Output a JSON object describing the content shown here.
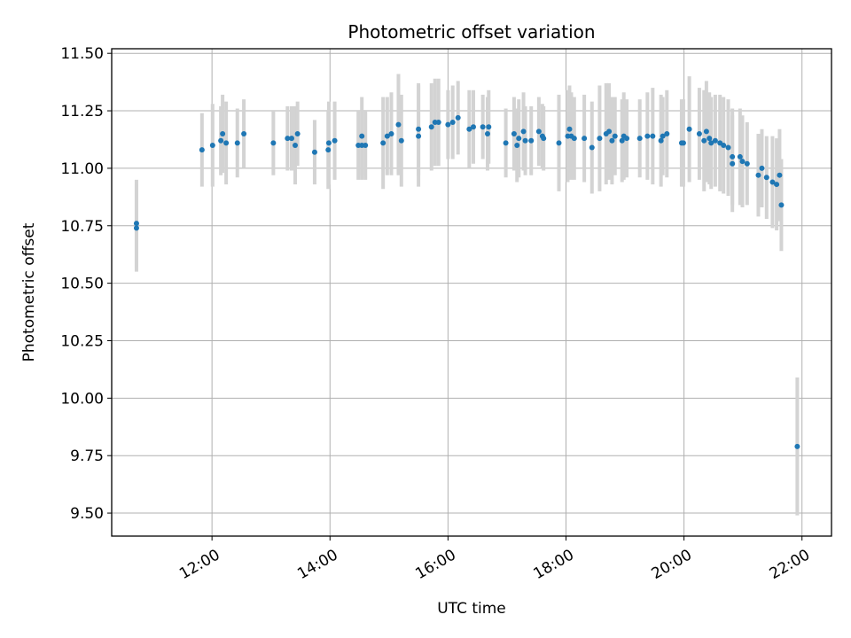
{
  "chart_data": {
    "type": "scatter",
    "title": "Photometric offset variation",
    "xlabel": "UTC time",
    "ylabel": "Photometric offset",
    "x_unit": "hours (UTC)",
    "xlim": [
      10.3,
      22.5
    ],
    "ylim": [
      9.4,
      11.52
    ],
    "x_ticks": [
      12,
      14,
      16,
      18,
      20,
      22
    ],
    "x_tick_labels": [
      "12:00",
      "14:00",
      "16:00",
      "18:00",
      "20:00",
      "22:00"
    ],
    "y_ticks": [
      9.5,
      9.75,
      10.0,
      10.25,
      10.5,
      10.75,
      11.0,
      11.25,
      11.5
    ],
    "y_tick_labels": [
      "9.50",
      "9.75",
      "10.00",
      "10.25",
      "10.50",
      "10.75",
      "11.00",
      "11.25",
      "11.50"
    ],
    "grid": true,
    "colors": {
      "point": "#1f77b4",
      "errorbar": "#d3d3d3",
      "grid": "#b0b0b0"
    },
    "series": [
      {
        "x": [
          10.72,
          10.72,
          11.83,
          12.01,
          12.15,
          12.18,
          12.24,
          12.43,
          12.54,
          13.04,
          13.28,
          13.35,
          13.41,
          13.45,
          13.74,
          13.97,
          13.98,
          14.08,
          14.48,
          14.54,
          14.54,
          14.6,
          14.9,
          14.97,
          15.04,
          15.16,
          15.21,
          15.5,
          15.5,
          15.72,
          15.78,
          15.84,
          16.0,
          16.08,
          16.17,
          16.36,
          16.43,
          16.59,
          16.67,
          16.69,
          16.98,
          17.12,
          17.17,
          17.2,
          17.28,
          17.31,
          17.41,
          17.54,
          17.6,
          17.62,
          17.88,
          18.03,
          18.06,
          18.09,
          18.14,
          18.31,
          18.44,
          18.57,
          18.68,
          18.73,
          18.78,
          18.83,
          18.95,
          18.98,
          19.03,
          19.25,
          19.38,
          19.47,
          19.61,
          19.64,
          19.71,
          19.96,
          19.99,
          20.09,
          20.26,
          20.34,
          20.38,
          20.43,
          20.46,
          20.53,
          20.61,
          20.67,
          20.75,
          20.82,
          20.82,
          20.95,
          20.99,
          21.07,
          21.26,
          21.32,
          21.4,
          21.5,
          21.57,
          21.62,
          21.65,
          21.92
        ],
        "y": [
          10.74,
          10.76,
          11.08,
          11.1,
          11.12,
          11.15,
          11.11,
          11.11,
          11.15,
          11.11,
          11.13,
          11.13,
          11.1,
          11.15,
          11.07,
          11.08,
          11.11,
          11.12,
          11.1,
          11.1,
          11.14,
          11.1,
          11.11,
          11.14,
          11.15,
          11.19,
          11.12,
          11.14,
          11.17,
          11.18,
          11.2,
          11.2,
          11.19,
          11.2,
          11.22,
          11.17,
          11.18,
          11.18,
          11.15,
          11.18,
          11.11,
          11.15,
          11.1,
          11.13,
          11.16,
          11.12,
          11.12,
          11.16,
          11.14,
          11.13,
          11.11,
          11.14,
          11.17,
          11.14,
          11.13,
          11.13,
          11.09,
          11.13,
          11.15,
          11.16,
          11.12,
          11.14,
          11.12,
          11.14,
          11.13,
          11.13,
          11.14,
          11.14,
          11.12,
          11.14,
          11.15,
          11.11,
          11.11,
          11.17,
          11.15,
          11.12,
          11.16,
          11.13,
          11.11,
          11.12,
          11.11,
          11.1,
          11.09,
          11.02,
          11.05,
          11.05,
          11.03,
          11.02,
          10.97,
          11.0,
          10.96,
          10.94,
          10.93,
          10.97,
          10.84,
          9.79
        ],
        "yerr": [
          0.19,
          0.19,
          0.16,
          0.18,
          0.15,
          0.17,
          0.18,
          0.15,
          0.15,
          0.14,
          0.14,
          0.14,
          0.17,
          0.14,
          0.14,
          0.17,
          0.18,
          0.17,
          0.15,
          0.15,
          0.17,
          0.15,
          0.2,
          0.17,
          0.18,
          0.22,
          0.2,
          0.22,
          0.2,
          0.19,
          0.19,
          0.19,
          0.15,
          0.16,
          0.16,
          0.17,
          0.16,
          0.14,
          0.16,
          0.16,
          0.15,
          0.16,
          0.16,
          0.17,
          0.17,
          0.15,
          0.15,
          0.15,
          0.14,
          0.14,
          0.21,
          0.2,
          0.19,
          0.19,
          0.18,
          0.19,
          0.2,
          0.23,
          0.22,
          0.21,
          0.19,
          0.17,
          0.18,
          0.19,
          0.17,
          0.17,
          0.19,
          0.21,
          0.2,
          0.17,
          0.19,
          0.19,
          0.19,
          0.23,
          0.2,
          0.22,
          0.22,
          0.2,
          0.2,
          0.2,
          0.21,
          0.21,
          0.21,
          0.21,
          0.21,
          0.21,
          0.2,
          0.18,
          0.18,
          0.17,
          0.18,
          0.2,
          0.2,
          0.2,
          0.2,
          0.3
        ]
      }
    ]
  }
}
